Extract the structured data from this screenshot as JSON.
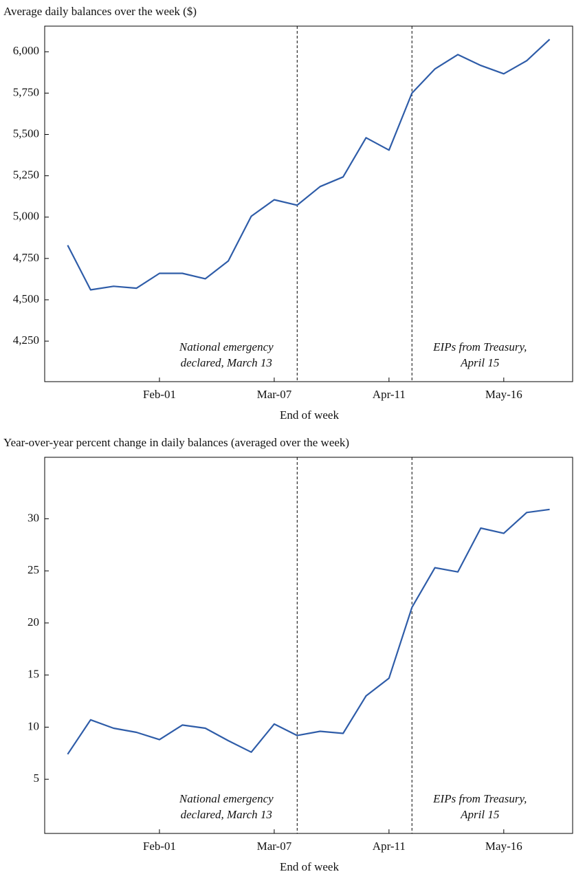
{
  "chart_data": [
    {
      "type": "line",
      "title": "Average daily balances over the week ($)",
      "xlabel": "End of week",
      "categories": [
        null,
        null,
        null,
        null,
        "Feb-01",
        null,
        null,
        null,
        null,
        "Mar-07",
        null,
        null,
        null,
        null,
        "Apr-11",
        null,
        null,
        null,
        null,
        "May-16",
        null,
        null
      ],
      "values": [
        4830,
        4560,
        4582,
        4570,
        4660,
        4660,
        4627,
        4735,
        5005,
        5105,
        5072,
        5185,
        5243,
        5480,
        5405,
        5750,
        5896,
        5983,
        5917,
        5867,
        5946,
        6075
      ],
      "color": "#2e5ca8",
      "ylim": [
        4005,
        6155
      ],
      "yticks": [
        {
          "value": 4250,
          "label": "4,250"
        },
        {
          "value": 4500,
          "label": "4,500"
        },
        {
          "value": 4750,
          "label": "4,750"
        },
        {
          "value": 5000,
          "label": "5,000"
        },
        {
          "value": 5250,
          "label": "5,250"
        },
        {
          "value": 5500,
          "label": "5,500"
        },
        {
          "value": 5750,
          "label": "5,750"
        },
        {
          "value": 6000,
          "label": "6,000"
        }
      ],
      "annotations": [
        {
          "category_index": 10,
          "lines": [
            "National emergency",
            "declared, March 13"
          ]
        },
        {
          "category_index": 15,
          "lines": [
            "EIPs from Treasury,",
            "April 15"
          ]
        }
      ]
    },
    {
      "type": "line",
      "title": "Year-over-year percent change in daily balances (averaged over the week)",
      "xlabel": "End of week",
      "categories": [
        null,
        null,
        null,
        null,
        "Feb-01",
        null,
        null,
        null,
        null,
        "Mar-07",
        null,
        null,
        null,
        null,
        "Apr-11",
        null,
        null,
        null,
        null,
        "May-16",
        null,
        null
      ],
      "values": [
        7.4,
        10.7,
        9.9,
        9.5,
        8.8,
        10.2,
        9.9,
        8.7,
        7.6,
        10.3,
        9.2,
        9.6,
        9.4,
        13.0,
        14.7,
        21.5,
        25.3,
        24.9,
        29.1,
        28.6,
        30.6,
        30.9
      ],
      "color": "#2e5ca8",
      "ylim": [
        -0.2,
        35.9
      ],
      "yticks": [
        5,
        10,
        15,
        20,
        25,
        30
      ],
      "annotations": [
        {
          "category_index": 10,
          "lines": [
            "National emergency",
            "declared, March 13"
          ]
        },
        {
          "category_index": 15,
          "lines": [
            "EIPs from Treasury,",
            "April 15"
          ]
        }
      ]
    }
  ]
}
